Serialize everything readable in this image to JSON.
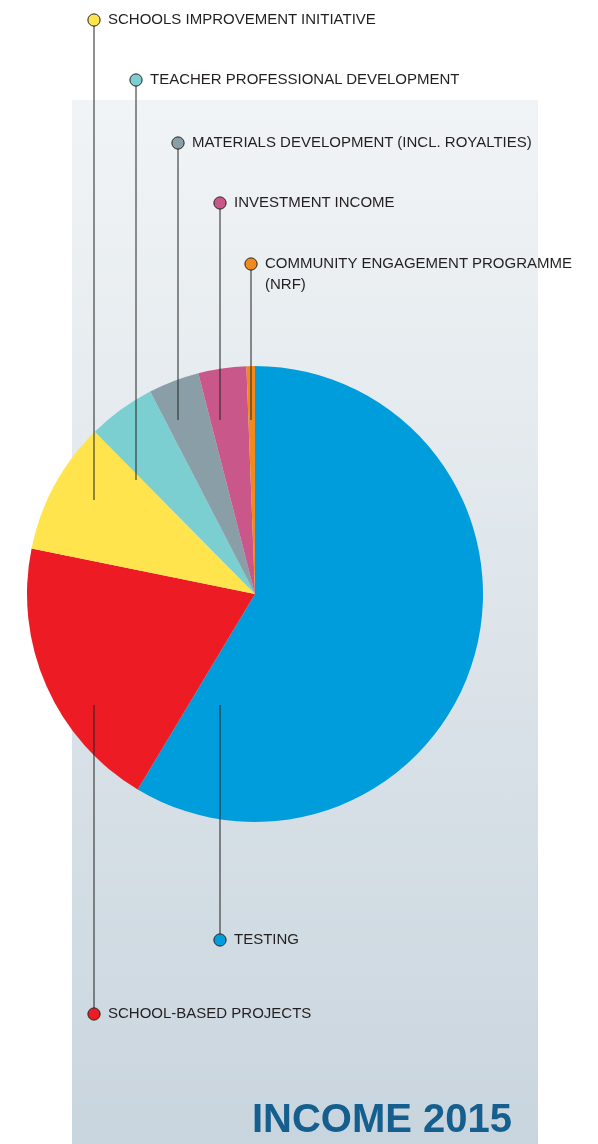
{
  "chart_data": {
    "type": "pie",
    "title": "INCOME 2015",
    "legend": "top",
    "categories": [
      "TESTING",
      "SCHOOL-BASED PROJECTS",
      "SCHOOLS IMPROVEMENT INITIATIVE",
      "TEACHER PROFESSIONAL DEVELOPMENT",
      "MATERIALS DEVELOPMENT (INCL. ROYALTIES)",
      "INVESTMENT INCOME",
      "COMMUNITY ENGAGEMENT PROGRAMME (NRF)"
    ],
    "values": [
      58.6,
      19.6,
      9.4,
      4.8,
      3.6,
      3.4,
      0.6
    ],
    "colors": [
      "#009ddc",
      "#ed1c24",
      "#ffe44d",
      "#7ccfd0",
      "#8a9ea8",
      "#c9578a",
      "#f08a1c"
    ]
  }
}
